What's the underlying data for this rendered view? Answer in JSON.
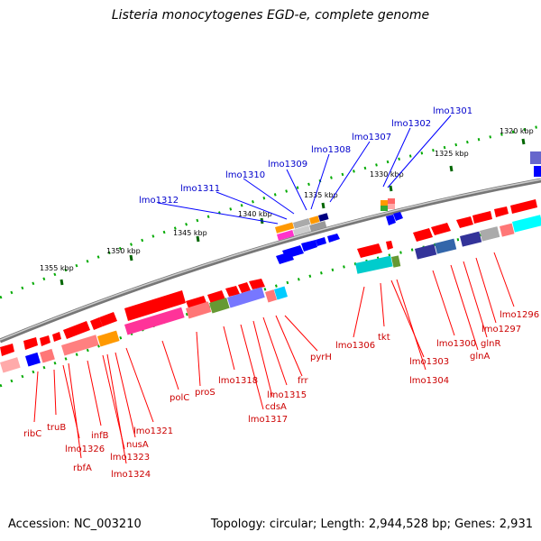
{
  "title": "Listeria monocytogenes EGD-e, complete genome",
  "footer": {
    "accession": "Accession: NC_003210",
    "summary": "Topology: circular; Length: 2,944,528 bp; Genes: 2,931"
  },
  "ruler": [
    {
      "label": "1320 kbp"
    },
    {
      "label": "1325 kbp"
    },
    {
      "label": "1330 kbp"
    },
    {
      "label": "1335 kbp"
    },
    {
      "label": "1340 kbp"
    },
    {
      "label": "1345 kbp"
    },
    {
      "label": "1350 kbp"
    },
    {
      "label": "1355 kbp"
    }
  ],
  "outer_genes": [
    "lmo1312",
    "lmo1311",
    "lmo1310",
    "lmo1309",
    "lmo1308",
    "lmo1307",
    "lmo1302",
    "lmo1301"
  ],
  "inner_genes_bottom": [
    "ribC",
    "truB",
    "lmo1326",
    "rbfA",
    "infB",
    "lmo1323",
    "lmo1324",
    "nusA",
    "lmo1321",
    "polC",
    "proS",
    "lmo1318",
    "lmo1317",
    "cdsA",
    "lmo1315",
    "frr",
    "pyrH"
  ],
  "inner_genes_right": [
    "lmo1306",
    "tkt",
    "lmo1303",
    "lmo1304",
    "lmo1300",
    "glnA",
    "glnR",
    "lmo1297",
    "lmo1296"
  ],
  "colors": {
    "backbone": "#808080",
    "tick": "#00aa00",
    "tick_major": "#006600",
    "plus_strand": "#ff0000",
    "minus_strand": "#0000ff",
    "label_red": "#cc0000",
    "label_blue": "#0000cc"
  }
}
